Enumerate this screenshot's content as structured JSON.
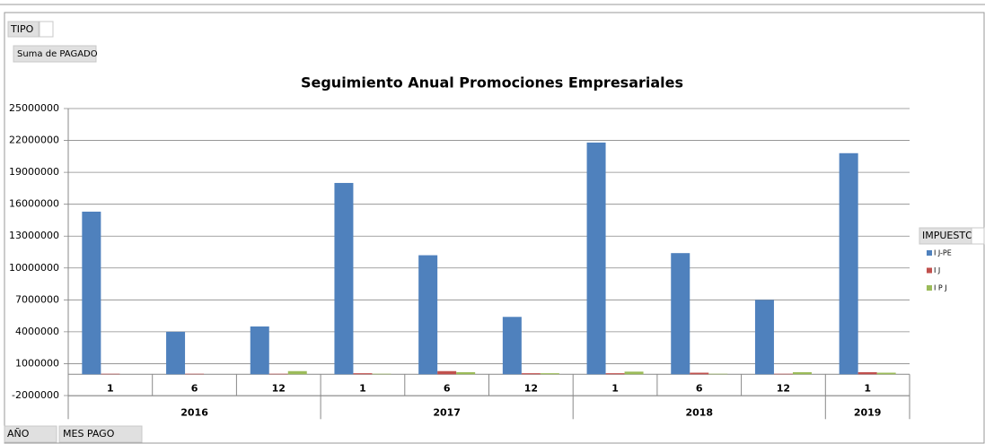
{
  "ui": {
    "filter_field": "TIPO",
    "value_field": "Suma de PAGADO",
    "legend_field": "IMPUESTO",
    "axis_fields": [
      "AÑO",
      "MES PAGO"
    ]
  },
  "chart_data": {
    "type": "bar",
    "title": "Seguimiento Anual Promociones Empresariales",
    "groups": [
      {
        "name": "2016",
        "categories": [
          "1",
          "6",
          "12"
        ]
      },
      {
        "name": "2017",
        "categories": [
          "1",
          "6",
          "12"
        ]
      },
      {
        "name": "2018",
        "categories": [
          "1",
          "6",
          "12"
        ]
      },
      {
        "name": "2019",
        "categories": [
          "1"
        ]
      }
    ],
    "series": [
      {
        "name": "I J-PE",
        "color": "#4f81bd",
        "values": [
          15300000,
          4000000,
          4500000,
          18000000,
          11200000,
          5400000,
          21800000,
          11400000,
          7000000,
          20800000
        ]
      },
      {
        "name": "I J",
        "color": "#c0504d",
        "values": [
          50000,
          50000,
          50000,
          100000,
          300000,
          100000,
          100000,
          150000,
          50000,
          200000
        ]
      },
      {
        "name": "I P J",
        "color": "#9bbb59",
        "values": [
          0,
          0,
          300000,
          50000,
          200000,
          100000,
          250000,
          50000,
          200000,
          150000
        ]
      }
    ],
    "ylim": [
      -2000000,
      25000000
    ],
    "yticks": [
      -2000000,
      1000000,
      4000000,
      7000000,
      10000000,
      13000000,
      16000000,
      19000000,
      22000000,
      25000000
    ],
    "grid": true
  }
}
